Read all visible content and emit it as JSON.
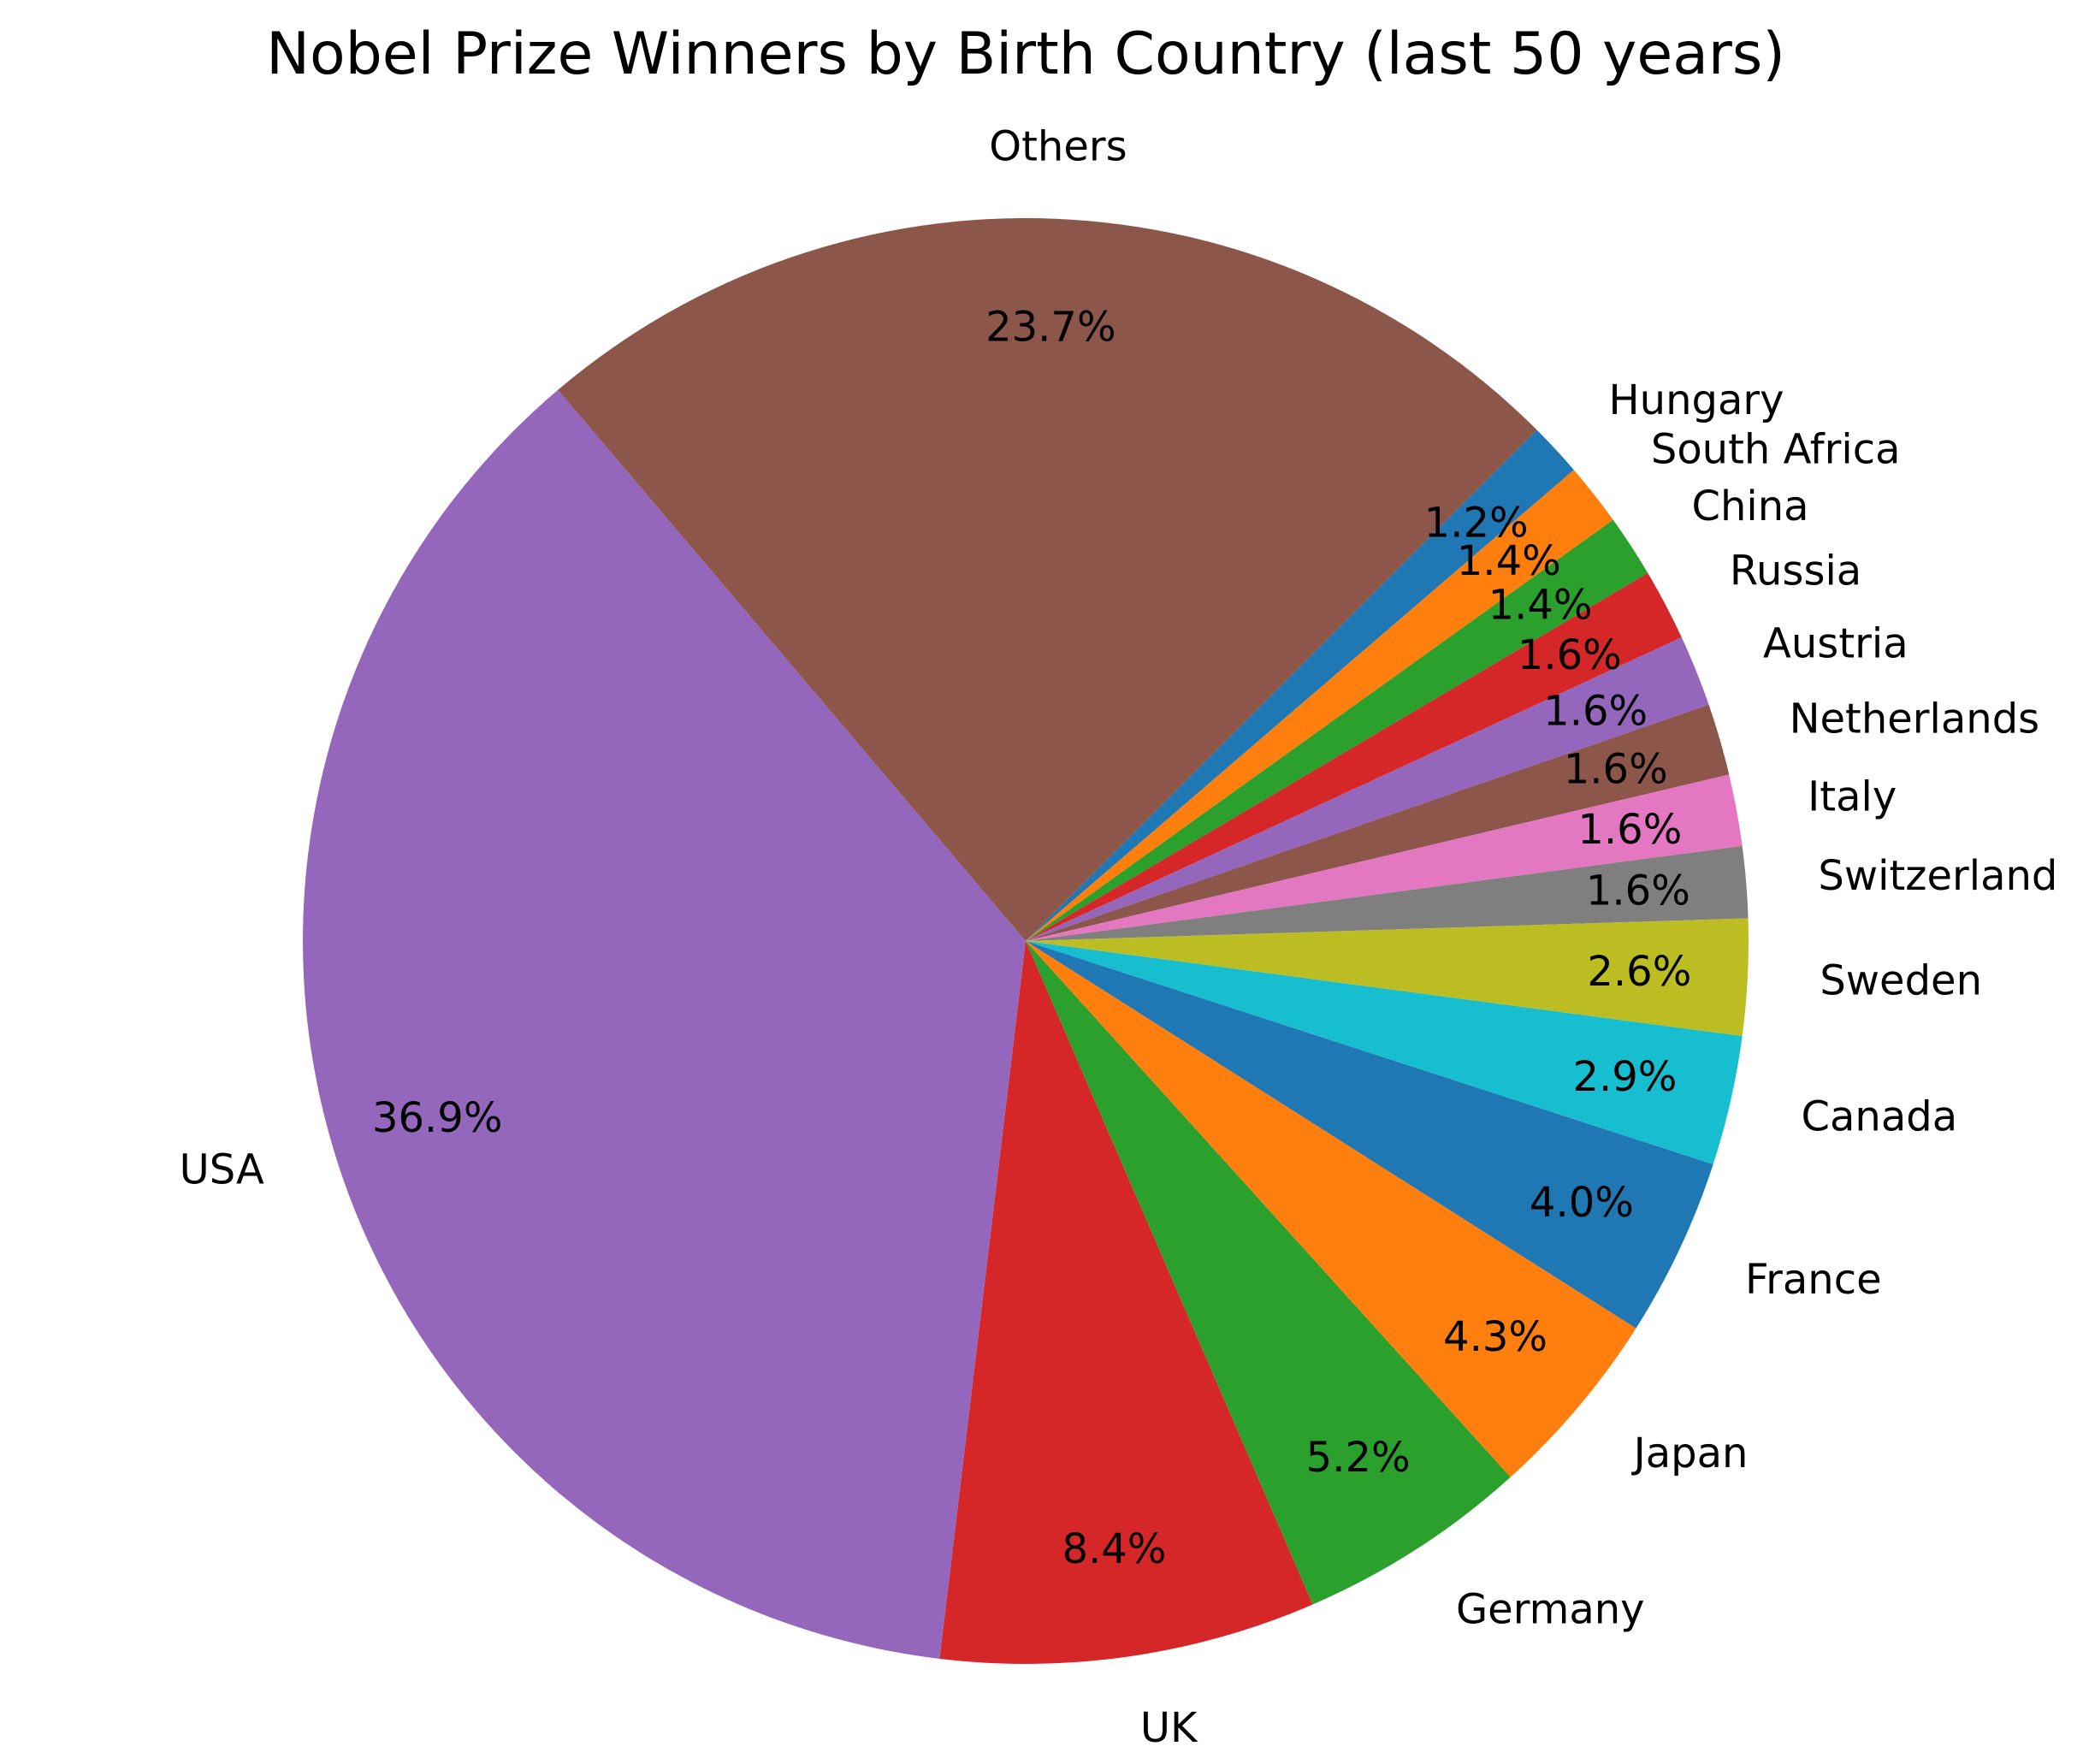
{
  "chart_data": {
    "type": "pie",
    "title": "Nobel Prize Winners by Birth Country (last 50 years)",
    "slices": [
      {
        "label": "Hungary",
        "value": 1.2,
        "pct_label": "1.2%",
        "color": "#1f77b4"
      },
      {
        "label": "South Africa",
        "value": 1.4,
        "pct_label": "1.4%",
        "color": "#ff7f0e"
      },
      {
        "label": "China",
        "value": 1.4,
        "pct_label": "1.4%",
        "color": "#2ca02c"
      },
      {
        "label": "Russia",
        "value": 1.6,
        "pct_label": "1.6%",
        "color": "#d62728"
      },
      {
        "label": "Austria",
        "value": 1.6,
        "pct_label": "1.6%",
        "color": "#9467bd"
      },
      {
        "label": "Netherlands",
        "value": 1.6,
        "pct_label": "1.6%",
        "color": "#8c564b"
      },
      {
        "label": "Italy",
        "value": 1.6,
        "pct_label": "1.6%",
        "color": "#e377c2"
      },
      {
        "label": "Switzerland",
        "value": 1.6,
        "pct_label": "1.6%",
        "color": "#7f7f7f"
      },
      {
        "label": "Sweden",
        "value": 2.6,
        "pct_label": "2.6%",
        "color": "#bcbd22"
      },
      {
        "label": "Canada",
        "value": 2.9,
        "pct_label": "2.9%",
        "color": "#17becf"
      },
      {
        "label": "France",
        "value": 4.0,
        "pct_label": "4.0%",
        "color": "#1f77b4"
      },
      {
        "label": "Japan",
        "value": 4.3,
        "pct_label": "4.3%",
        "color": "#ff7f0e"
      },
      {
        "label": "Germany",
        "value": 5.2,
        "pct_label": "5.2%",
        "color": "#2ca02c"
      },
      {
        "label": "UK",
        "value": 8.4,
        "pct_label": "8.4%",
        "color": "#d62728"
      },
      {
        "label": "USA",
        "value": 36.9,
        "pct_label": "36.9%",
        "color": "#9467bd"
      },
      {
        "label": "Others",
        "value": 23.7,
        "pct_label": "23.7%",
        "color": "#8c564b"
      }
    ],
    "start_angle_deg": 45,
    "direction": "clockwise",
    "legend": "none"
  }
}
